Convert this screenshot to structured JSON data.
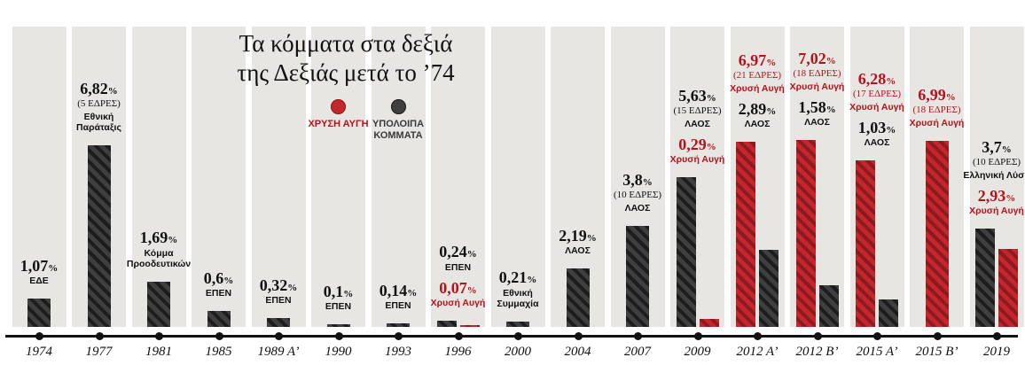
{
  "title": {
    "line1": "Τα κόμματα στα δεξιά",
    "line2": "της Δεξιάς μετά το ’74"
  },
  "legend": {
    "golden_dawn": "ΧΡΥΣΗ ΑΥΓΗ",
    "other": "ΥΠΟΛΟΙΠΑ ΚΟΜΜΑΤΑ"
  },
  "colors": {
    "golden_dawn_text": "#b5121c",
    "golden_dawn_bar": "#c1272d",
    "golden_dawn_bar_stripe": "#8e1a1f",
    "other_bar": "#3f3f3f",
    "other_bar_stripe": "#1d1d1d",
    "strip": "#e7e6e3",
    "ink": "#111111"
  },
  "chart_data": {
    "type": "bar",
    "title": "Τα κόμματα στα δεξιά της Δεξιάς μετά το ’74",
    "unit": "%",
    "ylim": [
      0,
      7.02
    ],
    "grid": false,
    "legend_position": "top-center",
    "categories": [
      "1974",
      "1977",
      "1981",
      "1985",
      "1989 A’",
      "1990",
      "1993",
      "1996",
      "2000",
      "2004",
      "2007",
      "2009",
      "2012 A’",
      "2012 B’",
      "2015 A’",
      "2015 B’",
      "2019"
    ],
    "columns": [
      {
        "year": "1974",
        "entries": [
          {
            "value": 1.07,
            "pct": "1,07",
            "party": "ΕΔΕ",
            "group": "other"
          }
        ]
      },
      {
        "year": "1977",
        "entries": [
          {
            "value": 6.82,
            "pct": "6,82",
            "seats": "(5 ΕΔΡΕΣ)",
            "party": "Εθνική Παράταξις",
            "group": "other"
          }
        ]
      },
      {
        "year": "1981",
        "entries": [
          {
            "value": 1.69,
            "pct": "1,69",
            "party": "Κόμμα Προοδευτικών",
            "group": "other"
          }
        ]
      },
      {
        "year": "1985",
        "entries": [
          {
            "value": 0.6,
            "pct": "0,6",
            "party": "ΕΠΕΝ",
            "group": "other"
          }
        ]
      },
      {
        "year": "1989 A’",
        "entries": [
          {
            "value": 0.32,
            "pct": "0,32",
            "party": "ΕΠΕΝ",
            "group": "other"
          }
        ]
      },
      {
        "year": "1990",
        "entries": [
          {
            "value": 0.1,
            "pct": "0,1",
            "party": "ΕΠΕΝ",
            "group": "other"
          }
        ]
      },
      {
        "year": "1993",
        "entries": [
          {
            "value": 0.14,
            "pct": "0,14",
            "party": "ΕΠΕΝ",
            "group": "other"
          }
        ]
      },
      {
        "year": "1996",
        "entries": [
          {
            "value": 0.24,
            "pct": "0,24",
            "party": "ΕΠΕΝ",
            "group": "other"
          },
          {
            "value": 0.07,
            "pct": "0,07",
            "party": "Χρυσή Αυγή",
            "group": "gd"
          }
        ]
      },
      {
        "year": "2000",
        "entries": [
          {
            "value": 0.21,
            "pct": "0,21",
            "party": "Εθνική Συμμαχία",
            "group": "other"
          }
        ]
      },
      {
        "year": "2004",
        "entries": [
          {
            "value": 2.19,
            "pct": "2,19",
            "party": "ΛΑΟΣ",
            "group": "other"
          }
        ]
      },
      {
        "year": "2007",
        "entries": [
          {
            "value": 3.8,
            "pct": "3,8",
            "seats": "(10 ΕΔΡΕΣ)",
            "party": "ΛΑΟΣ",
            "group": "other"
          }
        ]
      },
      {
        "year": "2009",
        "entries": [
          {
            "value": 5.63,
            "pct": "5,63",
            "seats": "(15 ΕΔΡΕΣ)",
            "party": "ΛΑΟΣ",
            "group": "other"
          },
          {
            "value": 0.29,
            "pct": "0,29",
            "party": "Χρυσή Αυγή",
            "group": "gd"
          }
        ]
      },
      {
        "year": "2012 A’",
        "entries": [
          {
            "value": 6.97,
            "pct": "6,97",
            "seats": "(21 ΕΔΡΕΣ)",
            "party": "Χρυσή Αυγή",
            "group": "gd"
          },
          {
            "value": 2.89,
            "pct": "2,89",
            "party": "ΛΑΟΣ",
            "group": "other"
          }
        ]
      },
      {
        "year": "2012 B’",
        "entries": [
          {
            "value": 7.02,
            "pct": "7,02",
            "seats": "(18 ΕΔΡΕΣ)",
            "party": "Χρυσή Αυγή",
            "group": "gd"
          },
          {
            "value": 1.58,
            "pct": "1,58",
            "party": "ΛΑΟΣ",
            "group": "other"
          }
        ]
      },
      {
        "year": "2015 A’",
        "entries": [
          {
            "value": 6.28,
            "pct": "6,28",
            "seats": "(17 ΕΔΡΕΣ)",
            "party": "Χρυσή Αυγή",
            "group": "gd"
          },
          {
            "value": 1.03,
            "pct": "1,03",
            "party": "ΛΑΟΣ",
            "group": "other"
          }
        ]
      },
      {
        "year": "2015 B’",
        "entries": [
          {
            "value": 6.99,
            "pct": "6,99",
            "seats": "(18 ΕΔΡΕΣ)",
            "party": "Χρυσή Αυγή",
            "group": "gd"
          }
        ]
      },
      {
        "year": "2019",
        "entries": [
          {
            "value": 3.7,
            "pct": "3,7",
            "seats": "(10 ΕΔΡΕΣ)",
            "party": "Ελληνική Λύση",
            "group": "other"
          },
          {
            "value": 2.93,
            "pct": "2,93",
            "party": "Χρυσή Αυγή",
            "group": "gd"
          }
        ]
      }
    ]
  }
}
